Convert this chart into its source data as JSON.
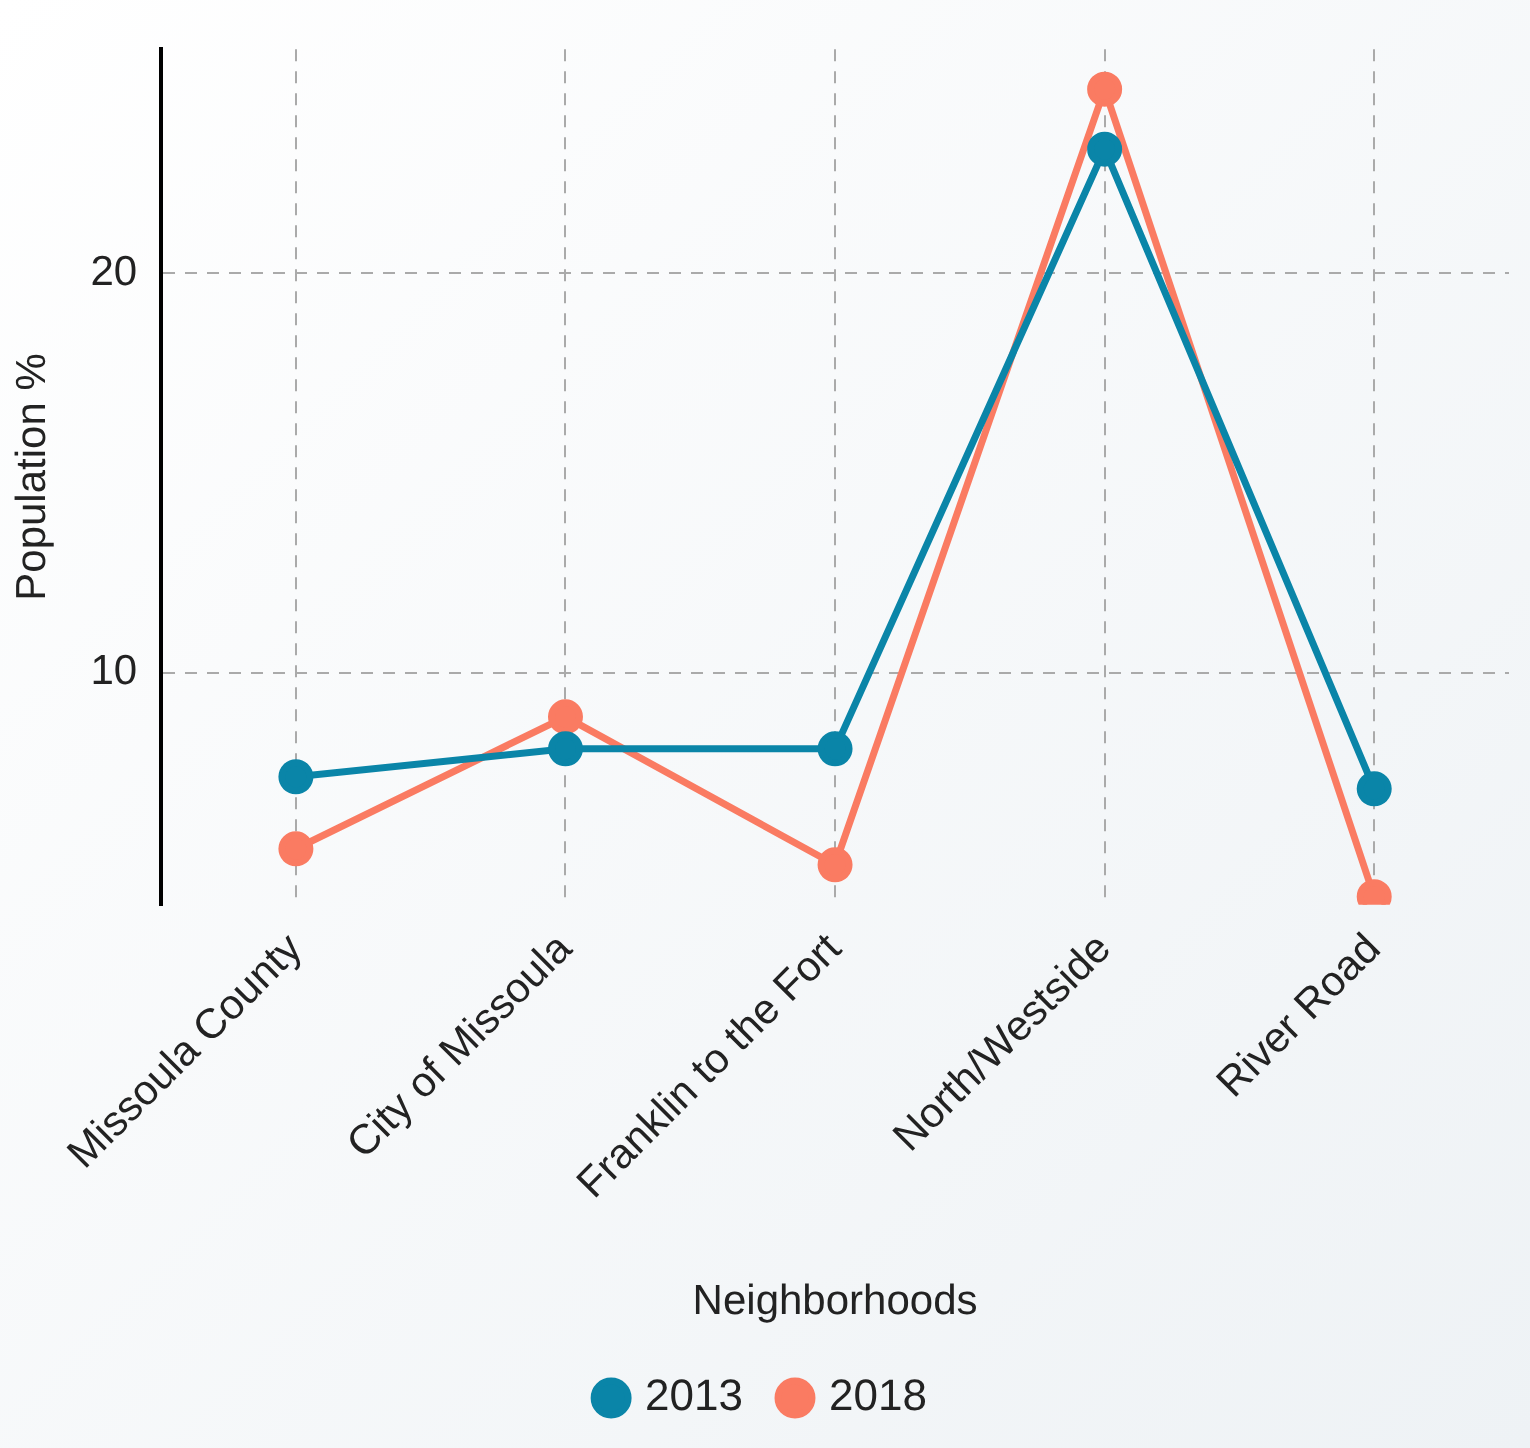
{
  "chart_data": {
    "type": "line",
    "xlabel": "Neighborhoods",
    "ylabel": "Population %",
    "categories": [
      "Missoula County",
      "City of Missoula",
      "Franklin to the Fort",
      "North/Westside",
      "River Road"
    ],
    "series": [
      {
        "name": "2013",
        "color": "#0a85a8",
        "values": [
          7.4,
          8.1,
          8.1,
          23.1,
          7.1
        ]
      },
      {
        "name": "2018",
        "color": "#fa7b62",
        "values": [
          5.6,
          8.9,
          5.2,
          24.6,
          4.4
        ]
      }
    ],
    "ylim": [
      4.2,
      25.6
    ],
    "yticks": [
      10,
      20
    ],
    "grid": true,
    "legend": "bottom",
    "marker": "circle",
    "line_style": "solid"
  }
}
